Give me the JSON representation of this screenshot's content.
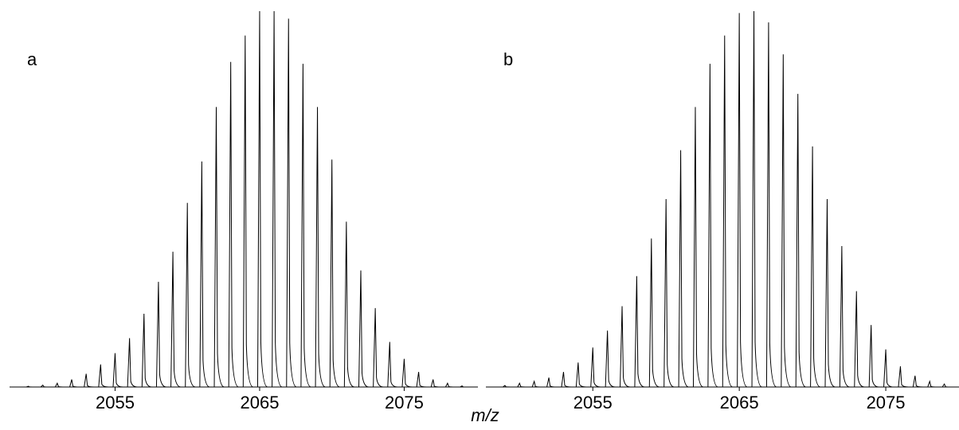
{
  "axis_label": "m/z",
  "chart_data": [
    {
      "type": "spectrum",
      "title": "a",
      "color": "#000000",
      "x": [
        2049,
        2050,
        2051,
        2052,
        2053,
        2054,
        2055,
        2056,
        2057,
        2058,
        2059,
        2060,
        2061,
        2062,
        2063,
        2064,
        2065,
        2066,
        2067,
        2068,
        2069,
        2070,
        2071,
        2072,
        2073,
        2074,
        2075,
        2076,
        2077,
        2078,
        2079
      ],
      "values": [
        0.2,
        0.5,
        1,
        2,
        3.5,
        6,
        9,
        13,
        19.5,
        28,
        36,
        49,
        60,
        74.5,
        86.5,
        93.5,
        100,
        100,
        98,
        86,
        74.5,
        60.5,
        44,
        31,
        21,
        12,
        7.5,
        4,
        2,
        1,
        0.3
      ],
      "xlim": [
        2047.7,
        2080.1
      ],
      "xticks": [
        2055,
        2065,
        2075
      ],
      "ylim": [
        0,
        100
      ]
    },
    {
      "type": "spectrum",
      "title": "b",
      "color": "#000000",
      "x": [
        2049,
        2050,
        2051,
        2052,
        2053,
        2054,
        2055,
        2056,
        2057,
        2058,
        2059,
        2060,
        2061,
        2062,
        2063,
        2064,
        2065,
        2066,
        2067,
        2068,
        2069,
        2070,
        2071,
        2072,
        2073,
        2074,
        2075,
        2076,
        2077,
        2078,
        2079
      ],
      "values": [
        0.4,
        1,
        1.5,
        2.5,
        4,
        6.5,
        10.5,
        15,
        21.5,
        29.5,
        39.5,
        50,
        63,
        74.5,
        86,
        93.5,
        99.5,
        100,
        97,
        88.5,
        78,
        64,
        50,
        37.5,
        25.5,
        16.5,
        10,
        5.5,
        3,
        1.5,
        0.8
      ],
      "xlim": [
        2047.7,
        2080.0
      ],
      "xticks": [
        2055,
        2065,
        2075
      ],
      "ylim": [
        0,
        100
      ]
    }
  ]
}
